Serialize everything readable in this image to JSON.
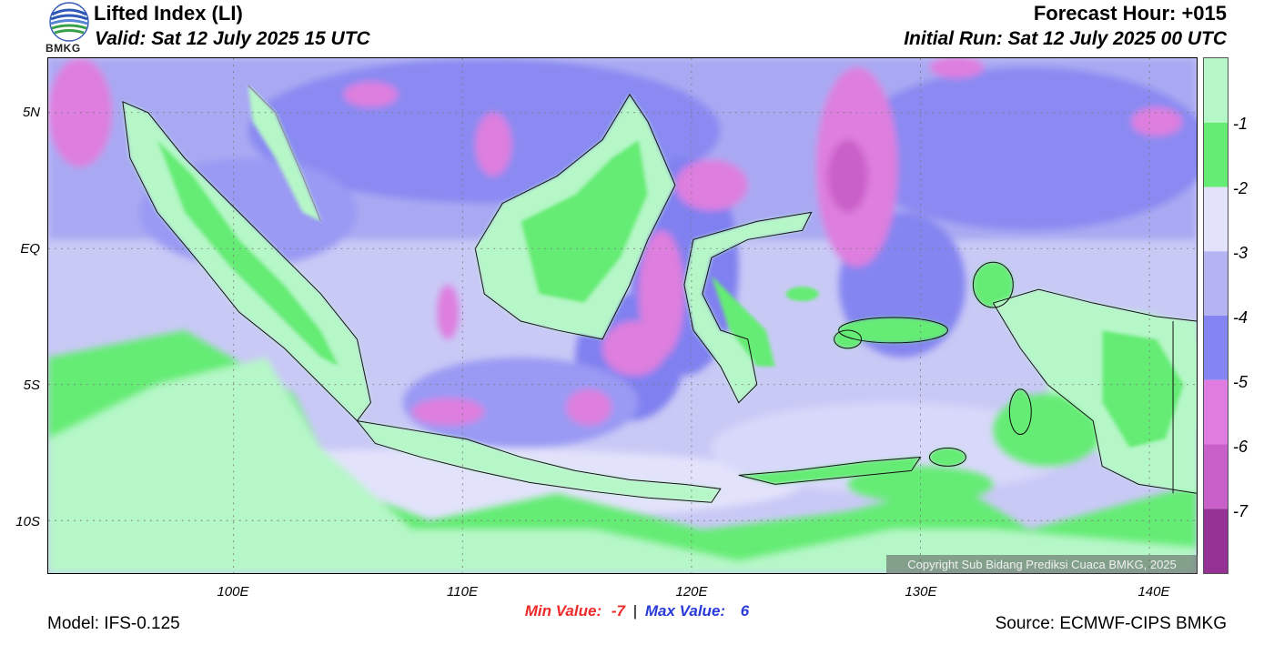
{
  "header": {
    "title": "Lifted Index (LI)",
    "valid": "Valid: Sat 12 July 2025 15 UTC",
    "forecast_hour": "Forecast Hour: +015",
    "initial_run": "Initial Run: Sat 12 July 2025 00 UTC"
  },
  "logo": {
    "text": "BMKG"
  },
  "axes": {
    "lat_labels": [
      "5N",
      "EQ",
      "5S",
      "10S"
    ],
    "lon_labels": [
      "100E",
      "110E",
      "120E",
      "130E",
      "140E"
    ]
  },
  "colorbar": {
    "labels": [
      "-1",
      "-2",
      "-3",
      "-4",
      "-5",
      "-6",
      "-7"
    ],
    "colors": [
      "#b6f7c8",
      "#65ec75",
      "#e2e2fb",
      "#b4b4f5",
      "#8484f2",
      "#e07ce0",
      "#c95fc9",
      "#953195"
    ]
  },
  "stats": {
    "min_label": "Min Value:",
    "min_value": "-7",
    "separator": "|",
    "max_label": "Max Value:",
    "max_value": "6"
  },
  "footer": {
    "model": "Model: IFS-0.125",
    "source": "Source: ECMWF-CIPS BMKG",
    "copyright": "Copyright Sub Bidang Prediksi Cuaca BMKG, 2025"
  }
}
